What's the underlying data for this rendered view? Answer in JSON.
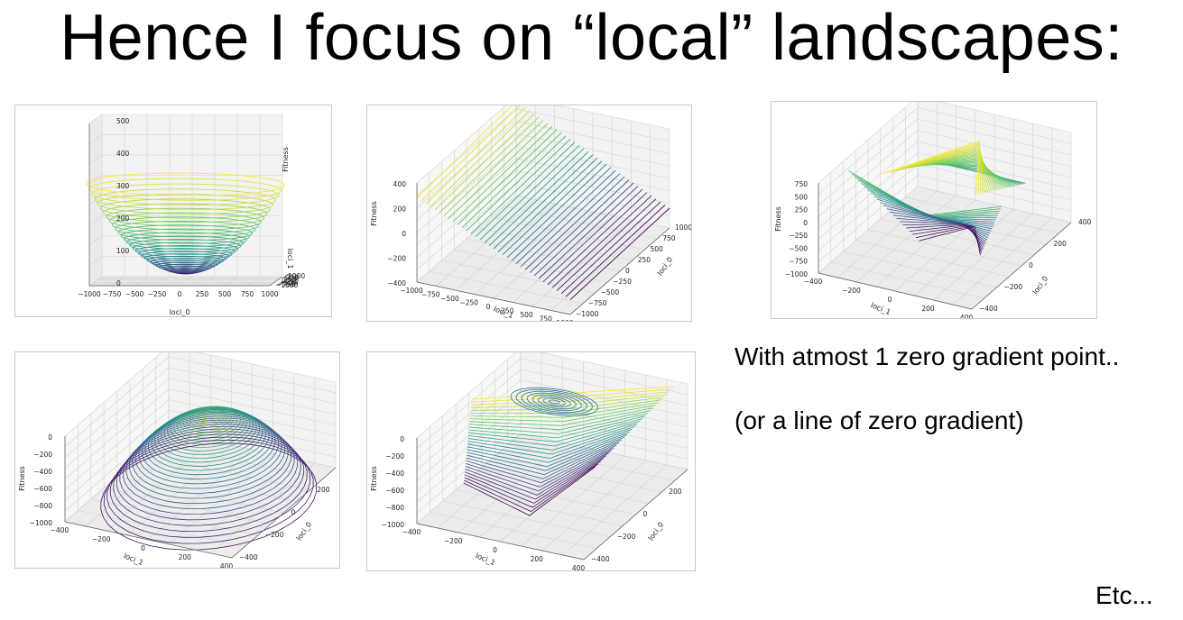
{
  "slide": {
    "title": "Hence I focus on “local” landscapes:",
    "note_1": "With atmost 1 zero gradient point..",
    "note_2": "(or a line of zero gradient)",
    "etc": "Etc..."
  },
  "colormap": [
    "#440154",
    "#3b528b",
    "#21918c",
    "#5ec962",
    "#fde725"
  ],
  "chart_data": [
    {
      "type": "surface-contour-3d",
      "surface": "upward paraboloid (bowl)",
      "xlabel": "loci_0",
      "ylabel": "loci_1",
      "zlabel": "Fitness",
      "xticks": [
        "−1000",
        "−750",
        "−500",
        "−250",
        "0",
        "250",
        "500",
        "750",
        "1000"
      ],
      "yticks": [
        "−1000",
        "−750",
        "−500",
        "−250",
        "0",
        "250",
        "500",
        "750",
        "1000"
      ],
      "zticks": [
        "500",
        "400",
        "300",
        "200",
        "100",
        "0"
      ],
      "xlim": [
        -1000,
        1000
      ],
      "ylim": [
        -1000,
        1000
      ],
      "zlim": [
        0,
        500
      ]
    },
    {
      "type": "surface-contour-3d",
      "surface": "tilted plane (linear)",
      "xlabel": "loci_1",
      "ylabel": "loci_0",
      "zlabel": "Fitness",
      "xticks": [
        "−1000",
        "−750",
        "−500",
        "−250",
        "0",
        "250",
        "500",
        "750",
        "1000"
      ],
      "yticks": [
        "−1000",
        "−750",
        "−500",
        "−250",
        "0",
        "250",
        "500",
        "750",
        "1000"
      ],
      "zticks": [
        "400",
        "200",
        "0",
        "−200",
        "−400"
      ],
      "xlim": [
        -1000,
        1000
      ],
      "ylim": [
        -1000,
        1000
      ],
      "zlim": [
        -400,
        400
      ]
    },
    {
      "type": "surface-contour-3d",
      "surface": "saddle",
      "xlabel": "loci_1",
      "ylabel": "loci_0",
      "zlabel": "Fitness",
      "xticks": [
        "−400",
        "−200",
        "0",
        "200",
        "400"
      ],
      "yticks": [
        "−400",
        "−200",
        "0",
        "200",
        "400"
      ],
      "zticks": [
        "750",
        "500",
        "250",
        "0",
        "−250",
        "−500",
        "−750",
        "−1000"
      ],
      "xlim": [
        -400,
        400
      ],
      "ylim": [
        -400,
        400
      ],
      "zlim": [
        -1000,
        750
      ]
    },
    {
      "type": "surface-contour-3d",
      "surface": "downward paraboloid (dome)",
      "xlabel": "loci_1",
      "ylabel": "loci_0",
      "zlabel": "Fitness",
      "xticks": [
        "−400",
        "−200",
        "0",
        "200",
        "400"
      ],
      "yticks": [
        "−400",
        "−200",
        "0",
        "200",
        "400"
      ],
      "zticks": [
        "0",
        "−200",
        "−400",
        "−600",
        "−800",
        "−1000"
      ],
      "xlim": [
        -400,
        400
      ],
      "ylim": [
        -400,
        400
      ],
      "zlim": [
        -1000,
        0
      ]
    },
    {
      "type": "surface-contour-3d",
      "surface": "ridge / line of zero gradient",
      "xlabel": "loci_1",
      "ylabel": "loci_0",
      "zlabel": "Fitness",
      "xticks": [
        "−400",
        "−200",
        "0",
        "200",
        "400"
      ],
      "yticks": [
        "−400",
        "−200",
        "0",
        "200",
        "400"
      ],
      "zticks": [
        "0",
        "−200",
        "−400",
        "−600",
        "−800",
        "−1000"
      ],
      "xlim": [
        -400,
        400
      ],
      "ylim": [
        -400,
        400
      ],
      "zlim": [
        -1000,
        0
      ]
    }
  ]
}
